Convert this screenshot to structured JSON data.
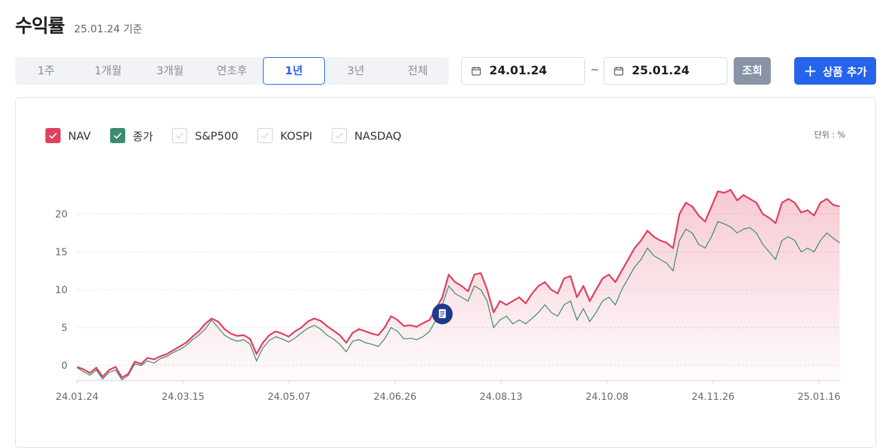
{
  "header": {
    "title": "수익률",
    "as_of": "25.01.24 기준"
  },
  "periods": [
    "1주",
    "1개월",
    "3개월",
    "연초후",
    "1년",
    "3년",
    "전체"
  ],
  "active_period": "1년",
  "date_range": {
    "start": "24.01.24",
    "separator": "~",
    "end": "25.01.24"
  },
  "buttons": {
    "query": "조회",
    "add": "상품 추가"
  },
  "legend": [
    {
      "label": "NAV",
      "checked": true,
      "color": "#e0415f"
    },
    {
      "label": "종가",
      "checked": true,
      "color": "#3e8a72"
    },
    {
      "label": "S&P500",
      "checked": false,
      "color": "#cccccc"
    },
    {
      "label": "KOSPI",
      "checked": false,
      "color": "#cccccc"
    },
    {
      "label": "NASDAQ",
      "checked": false,
      "color": "#cccccc"
    }
  ],
  "unit_label": "단위 : %",
  "colors": {
    "accent": "#2563eb",
    "nav": "#e0415f",
    "close": "#3e8a72",
    "marker": "#1f3a8a"
  },
  "chart_data": {
    "type": "line",
    "y_ticks": [
      0,
      5,
      10,
      15,
      20
    ],
    "ylim": [
      -2,
      23
    ],
    "x_ticks": [
      "24.01.24",
      "24.03.15",
      "24.05.07",
      "24.06.26",
      "24.08.13",
      "24.10.08",
      "24.11.26",
      "25.01.16"
    ],
    "grid": true,
    "series": [
      {
        "name": "NAV",
        "values": [
          -0.2,
          -0.5,
          -1.0,
          -0.3,
          -1.5,
          -0.6,
          -0.2,
          -1.6,
          -1.1,
          0.5,
          0.2,
          1.0,
          0.8,
          1.2,
          1.5,
          2.0,
          2.5,
          3.0,
          3.8,
          4.5,
          5.5,
          6.2,
          5.8,
          4.8,
          4.2,
          3.9,
          4.0,
          3.5,
          1.5,
          3.0,
          4.0,
          4.5,
          4.2,
          3.8,
          4.5,
          5.0,
          5.8,
          6.2,
          5.9,
          5.2,
          4.6,
          4.0,
          3.0,
          4.3,
          4.8,
          4.5,
          4.2,
          4.0,
          5.0,
          6.5,
          6.0,
          5.2,
          5.3,
          5.1,
          5.6,
          6.0,
          7.5,
          9.0,
          12.0,
          11.0,
          10.5,
          9.8,
          12.0,
          12.2,
          10.0,
          7.0,
          8.5,
          8.0,
          8.5,
          9.0,
          8.2,
          9.5,
          10.5,
          11.0,
          10.0,
          9.5,
          11.5,
          11.8,
          9.0,
          10.5,
          8.5,
          10.0,
          11.5,
          12.0,
          11.0,
          12.5,
          14.0,
          15.5,
          16.5,
          17.8,
          17.0,
          16.5,
          16.2,
          15.5,
          20.0,
          21.5,
          21.0,
          19.8,
          19.0,
          21.0,
          23.0,
          22.8,
          23.2,
          21.8,
          22.5,
          22.0,
          21.5,
          20.0,
          19.5,
          18.8,
          21.5,
          22.0,
          21.5,
          20.2,
          20.5,
          19.8,
          21.5,
          22.0,
          21.2,
          21.0
        ],
        "color": "#e0415f"
      },
      {
        "name": "종가",
        "values": [
          -0.3,
          -0.8,
          -1.3,
          -0.6,
          -1.8,
          -0.9,
          -0.6,
          -1.9,
          -1.3,
          0.2,
          0.0,
          0.6,
          0.3,
          0.9,
          1.2,
          1.7,
          2.1,
          2.6,
          3.4,
          4.0,
          4.8,
          6.0,
          5.0,
          4.0,
          3.5,
          3.2,
          3.4,
          2.8,
          0.6,
          2.3,
          3.3,
          3.8,
          3.5,
          3.1,
          3.6,
          4.3,
          4.9,
          5.3,
          4.8,
          4.0,
          3.5,
          2.8,
          1.8,
          3.2,
          3.4,
          3.0,
          2.8,
          2.5,
          3.5,
          5.0,
          4.5,
          3.5,
          3.6,
          3.4,
          3.8,
          4.5,
          6.0,
          8.0,
          10.5,
          9.5,
          9.0,
          8.5,
          10.5,
          10.0,
          8.5,
          5.0,
          6.0,
          6.5,
          5.5,
          6.0,
          5.5,
          6.2,
          7.0,
          8.0,
          7.0,
          6.5,
          8.0,
          8.5,
          6.0,
          7.5,
          5.8,
          7.0,
          8.5,
          9.0,
          8.0,
          10.0,
          11.5,
          13.0,
          14.0,
          15.5,
          14.5,
          14.0,
          13.5,
          12.5,
          16.5,
          18.0,
          17.5,
          16.0,
          15.5,
          17.0,
          19.0,
          18.7,
          18.3,
          17.5,
          18.0,
          18.2,
          17.5,
          16.0,
          15.0,
          14.0,
          16.5,
          17.0,
          16.5,
          15.0,
          15.5,
          15.0,
          16.5,
          17.5,
          16.8,
          16.2
        ],
        "color": "#3e8a72"
      }
    ],
    "event_marker_index": 57
  }
}
